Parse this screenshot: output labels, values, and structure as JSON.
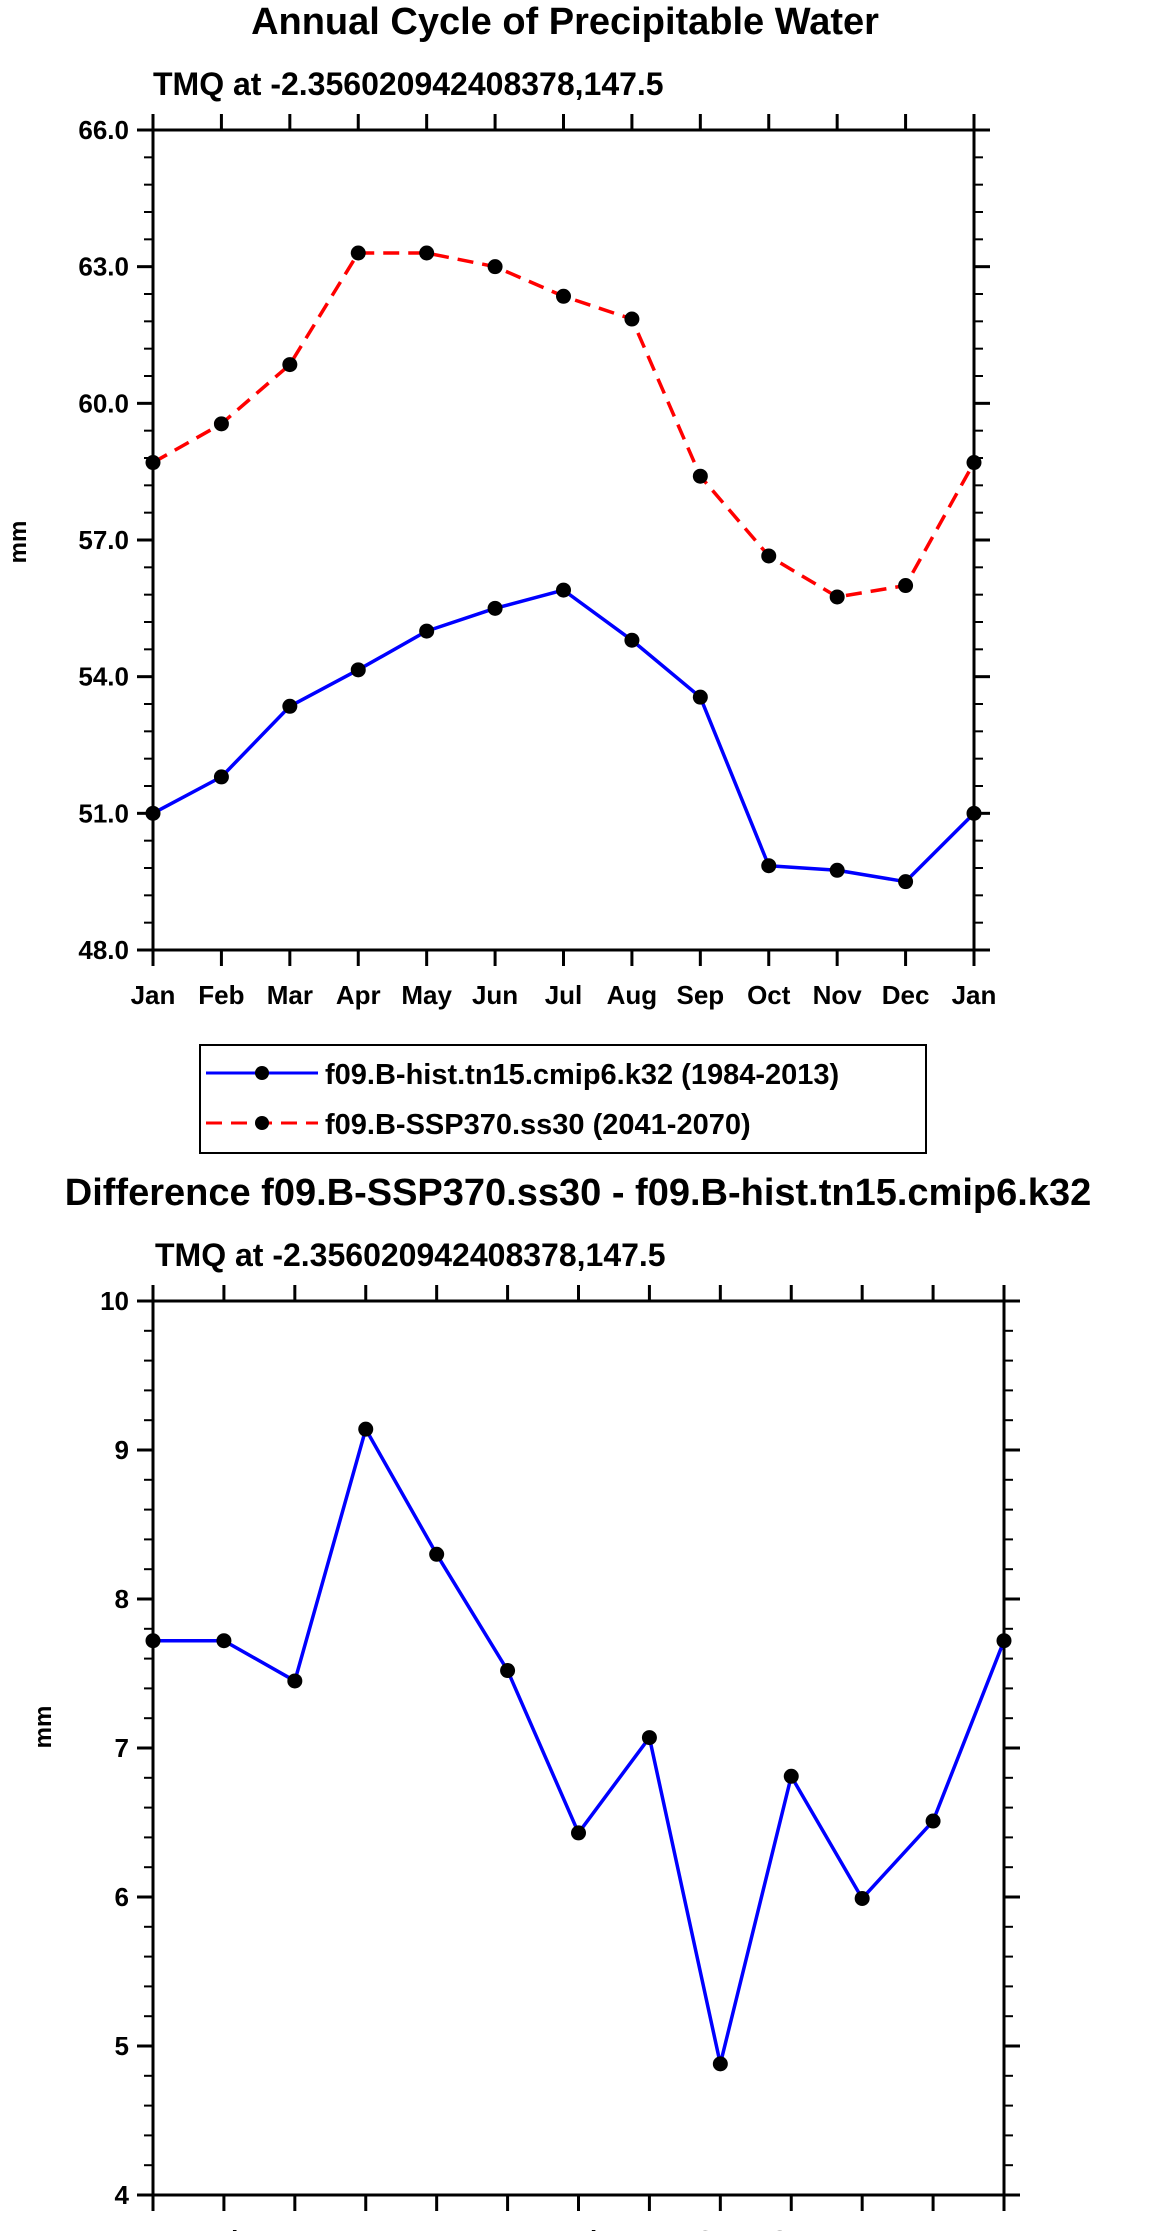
{
  "chart_data": [
    {
      "type": "line",
      "title": "Annual Cycle of Precipitable Water",
      "subtitle": "TMQ at -2.356020942408378,147.5",
      "ylabel": "mm",
      "xlabel": "",
      "categories": [
        "Jan",
        "Feb",
        "Mar",
        "Apr",
        "May",
        "Jun",
        "Jul",
        "Aug",
        "Sep",
        "Oct",
        "Nov",
        "Dec",
        "Jan"
      ],
      "ylim": [
        48.0,
        66.0
      ],
      "yticks": [
        "48.0",
        "51.0",
        "54.0",
        "57.0",
        "60.0",
        "63.0",
        "66.0"
      ],
      "series": [
        {
          "name": "f09.B-hist.tn15.cmip6.k32 (1984-2013)",
          "color": "#0000ff",
          "dash": "solid",
          "values": [
            51.0,
            51.8,
            53.35,
            54.15,
            55.0,
            55.5,
            55.9,
            54.8,
            53.55,
            49.85,
            49.75,
            49.5,
            51.0
          ]
        },
        {
          "name": "f09.B-SSP370.ss30 (2041-2070)",
          "color": "#ff0000",
          "dash": "dashed",
          "values": [
            58.7,
            59.55,
            60.85,
            63.3,
            63.3,
            63.0,
            62.35,
            61.85,
            58.4,
            56.65,
            55.75,
            56.0,
            58.7
          ]
        }
      ],
      "legend": "below"
    },
    {
      "type": "line",
      "title": "Difference f09.B-SSP370.ss30 - f09.B-hist.tn15.cmip6.k32",
      "subtitle": "TMQ at -2.356020942408378,147.5",
      "ylabel": "mm",
      "xlabel": "",
      "categories": [
        "Jan",
        "Feb",
        "Mar",
        "Apr",
        "May",
        "Jun",
        "Jul",
        "Aug",
        "Sep",
        "Oct",
        "Nov",
        "Dec",
        "Jan"
      ],
      "ylim": [
        4,
        10
      ],
      "yticks": [
        "4",
        "5",
        "6",
        "7",
        "8",
        "9",
        "10"
      ],
      "series": [
        {
          "name": "Difference",
          "color": "#0000ff",
          "dash": "solid",
          "values": [
            7.72,
            7.72,
            7.45,
            9.14,
            8.3,
            7.52,
            6.43,
            7.07,
            4.88,
            6.81,
            5.99,
            6.51,
            7.72
          ]
        }
      ]
    }
  ]
}
